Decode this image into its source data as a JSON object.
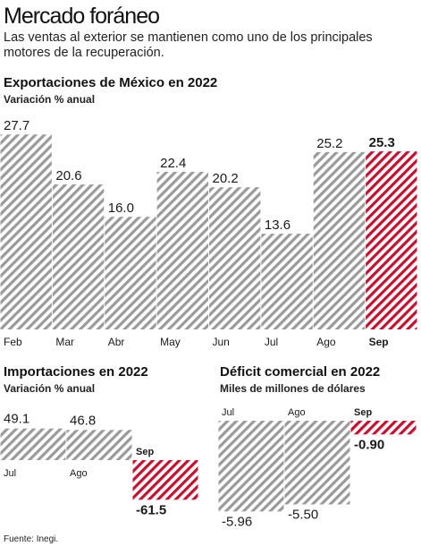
{
  "header": {
    "title": "Mercado foráneo",
    "subtitle": "Las ventas al exterior se mantienen como uno de los principales motores de la recuperación."
  },
  "source": "Fuente: Inegi.",
  "colors": {
    "bar_stripe": "#9a9a9a",
    "highlight_stripe": "#c8102e",
    "text": "#1a1a1a"
  },
  "chart_data": [
    {
      "type": "bar",
      "title": "Exportaciones de México en 2022",
      "subtitle": "Variación % anual",
      "categories": [
        "Feb",
        "Mar",
        "Abr",
        "May",
        "Jun",
        "Jul",
        "Ago",
        "Sep"
      ],
      "values": [
        27.7,
        20.6,
        16.0,
        22.4,
        20.2,
        13.6,
        25.2,
        25.3
      ],
      "value_labels": [
        "27.7",
        "20.6",
        "16.0",
        "22.4",
        "20.2",
        "13.6",
        "25.2",
        "25.3"
      ],
      "highlight": "Sep",
      "ylim": [
        0,
        29
      ]
    },
    {
      "type": "bar",
      "title": "Importaciones en 2022",
      "subtitle": "Variación % anual",
      "categories": [
        "Jul",
        "Ago",
        "Sep"
      ],
      "values": [
        49.1,
        46.8,
        -61.5
      ],
      "value_labels": [
        "49.1",
        "46.8",
        "-61.5"
      ],
      "highlight": "Sep"
    },
    {
      "type": "bar",
      "title": "Déficit comercial en 2022",
      "subtitle": "Miles de millones de dólares",
      "categories": [
        "Jul",
        "Ago",
        "Sep"
      ],
      "values": [
        -5.96,
        -5.5,
        -0.9
      ],
      "value_labels": [
        "-5.96",
        "-5.50",
        "-0.90"
      ],
      "highlight": "Sep"
    }
  ]
}
